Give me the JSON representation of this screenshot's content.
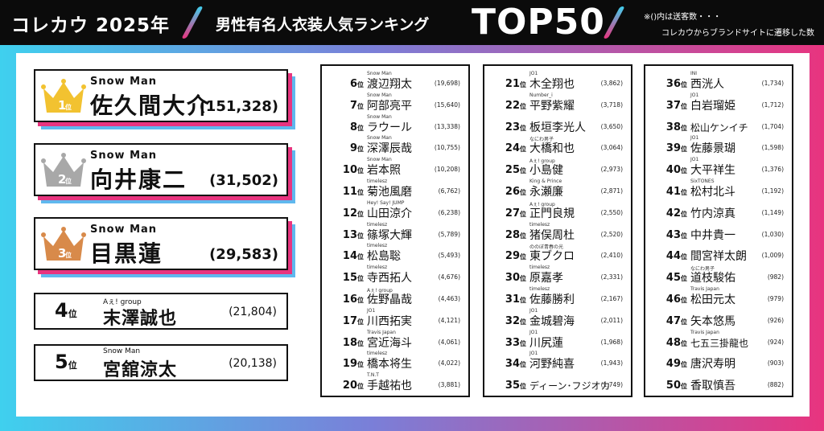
{
  "header": {
    "brand": "コレカウ 2025年",
    "title": "男性有名人衣装人気ランキング",
    "top": "TOP50",
    "note1": "※()内は送客数・・・",
    "note2": "コレカウからブランドサイトに遷移した数",
    "slash_color_top": "#3fd0ee",
    "slash_color_bottom": "#e8347f"
  },
  "suffix": "位",
  "top3": [
    {
      "rank": "1",
      "artist": "Snow Man",
      "name": "佐久間大介",
      "votes": "(151,328)",
      "crown_color": "#f2c230"
    },
    {
      "rank": "2",
      "artist": "Snow Man",
      "name": "向井康二",
      "votes": "(31,502)",
      "crown_color": "#a8a8a8"
    },
    {
      "rank": "3",
      "artist": "Snow Man",
      "name": "目黒蓮",
      "votes": "(29,583)",
      "crown_color": "#d88a4a"
    }
  ],
  "rank45": [
    {
      "rank": "4",
      "artist": "Aぇ! group",
      "name": "末澤誠也",
      "votes": "(21,804)"
    },
    {
      "rank": "5",
      "artist": "Snow Man",
      "name": "宮舘涼太",
      "votes": "(20,138)"
    }
  ],
  "columns": [
    [
      {
        "rank": "6",
        "group": "Snow Man",
        "name": "渡辺翔太",
        "count": "(19,698)"
      },
      {
        "rank": "7",
        "group": "Snow Man",
        "name": "阿部亮平",
        "count": "(15,640)"
      },
      {
        "rank": "8",
        "group": "Snow Man",
        "name": "ラウール",
        "count": "(13,338)"
      },
      {
        "rank": "9",
        "group": "Snow Man",
        "name": "深澤辰哉",
        "count": "(10,755)"
      },
      {
        "rank": "10",
        "group": "Snow Man",
        "name": "岩本照",
        "count": "(10,208)"
      },
      {
        "rank": "11",
        "group": "timelesz",
        "name": "菊池風磨",
        "count": "(6,762)"
      },
      {
        "rank": "12",
        "group": "Hey! Say! JUMP",
        "name": "山田涼介",
        "count": "(6,238)"
      },
      {
        "rank": "13",
        "group": "timelesz",
        "name": "篠塚大輝",
        "count": "(5,789)"
      },
      {
        "rank": "14",
        "group": "timelesz",
        "name": "松島聡",
        "count": "(5,493)"
      },
      {
        "rank": "15",
        "group": "timelesz",
        "name": "寺西拓人",
        "count": "(4,676)"
      },
      {
        "rank": "16",
        "group": "Aぇ! group",
        "name": "佐野晶哉",
        "count": "(4,463)"
      },
      {
        "rank": "17",
        "group": "JO1",
        "name": "川西拓実",
        "count": "(4,121)"
      },
      {
        "rank": "18",
        "group": "Travis Japan",
        "name": "宮近海斗",
        "count": "(4,061)"
      },
      {
        "rank": "19",
        "group": "timelesz",
        "name": "橋本将生",
        "count": "(4,022)"
      },
      {
        "rank": "20",
        "group": "T.N.T",
        "name": "手越祐也",
        "count": "(3,881)"
      }
    ],
    [
      {
        "rank": "21",
        "group": "JO1",
        "name": "木全翔也",
        "count": "(3,862)"
      },
      {
        "rank": "22",
        "group": "Number_i",
        "name": "平野紫耀",
        "count": "(3,718)"
      },
      {
        "rank": "23",
        "group": "",
        "name": "板垣李光人",
        "count": "(3,650)"
      },
      {
        "rank": "24",
        "group": "なにわ男子",
        "name": "大橋和也",
        "count": "(3,064)"
      },
      {
        "rank": "25",
        "group": "Aぇ! group",
        "name": "小島健",
        "count": "(2,973)"
      },
      {
        "rank": "26",
        "group": "King & Prince",
        "name": "永瀬廉",
        "count": "(2,871)"
      },
      {
        "rank": "27",
        "group": "Aぇ! group",
        "name": "正門良規",
        "count": "(2,550)"
      },
      {
        "rank": "28",
        "group": "timelesz",
        "name": "猪俣周杜",
        "count": "(2,520)"
      },
      {
        "rank": "29",
        "group": "ののぼ青春の光",
        "name": "東ブクロ",
        "count": "(2,410)"
      },
      {
        "rank": "30",
        "group": "timelesz",
        "name": "原嘉孝",
        "count": "(2,331)"
      },
      {
        "rank": "31",
        "group": "timelesz",
        "name": "佐藤勝利",
        "count": "(2,167)"
      },
      {
        "rank": "32",
        "group": "JO1",
        "name": "金城碧海",
        "count": "(2,011)"
      },
      {
        "rank": "33",
        "group": "JO1",
        "name": "川尻蓮",
        "count": "(1,968)"
      },
      {
        "rank": "34",
        "group": "JO1",
        "name": "河野純喜",
        "count": "(1,943)"
      },
      {
        "rank": "35",
        "group": "",
        "name": "ディーン･フジオカ",
        "count": "(1,749)"
      }
    ],
    [
      {
        "rank": "36",
        "group": "INI",
        "name": "西洸人",
        "count": "(1,734)"
      },
      {
        "rank": "37",
        "group": "JO1",
        "name": "白岩瑠姫",
        "count": "(1,712)"
      },
      {
        "rank": "38",
        "group": "",
        "name": "松山ケンイチ",
        "count": "(1,704)"
      },
      {
        "rank": "39",
        "group": "JO1",
        "name": "佐藤景瑚",
        "count": "(1,598)"
      },
      {
        "rank": "40",
        "group": "JO1",
        "name": "大平祥生",
        "count": "(1,376)"
      },
      {
        "rank": "41",
        "group": "SixTONES",
        "name": "松村北斗",
        "count": "(1,192)"
      },
      {
        "rank": "42",
        "group": "",
        "name": "竹内涼真",
        "count": "(1,149)"
      },
      {
        "rank": "43",
        "group": "",
        "name": "中井貴一",
        "count": "(1,030)"
      },
      {
        "rank": "44",
        "group": "",
        "name": "間宮祥太朗",
        "count": "(1,009)"
      },
      {
        "rank": "45",
        "group": "なにわ男子",
        "name": "道枝駿佑",
        "count": "(982)"
      },
      {
        "rank": "46",
        "group": "Travis Japan",
        "name": "松田元太",
        "count": "(979)"
      },
      {
        "rank": "47",
        "group": "",
        "name": "矢本悠馬",
        "count": "(926)"
      },
      {
        "rank": "48",
        "group": "Travis Japan",
        "name": "七五三掛龍也",
        "count": "(924)"
      },
      {
        "rank": "49",
        "group": "",
        "name": "唐沢寿明",
        "count": "(903)"
      },
      {
        "rank": "50",
        "group": "",
        "name": "香取慎吾",
        "count": "(882)"
      }
    ]
  ]
}
